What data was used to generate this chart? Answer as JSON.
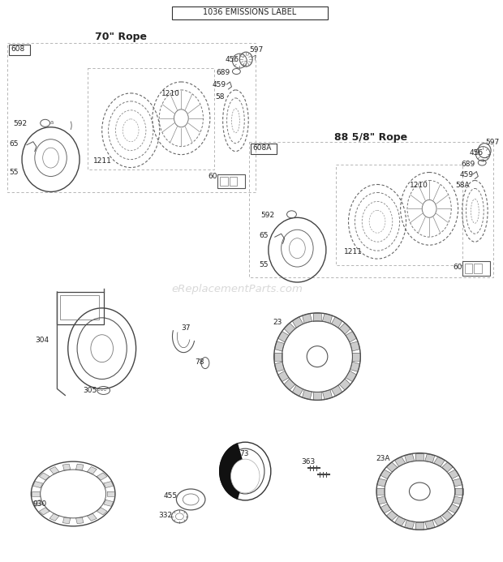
{
  "title_label": "1036 EMISSIONS LABEL",
  "watermark": "eReplacementParts.com",
  "bg_color": "#ffffff",
  "box1_title": "70\" Rope",
  "box2_title": "88 5/8\" Rope",
  "box1_label": "608",
  "box2_label": "608A",
  "line_color": "#555555",
  "dash_color": "#888888",
  "text_color": "#222222"
}
